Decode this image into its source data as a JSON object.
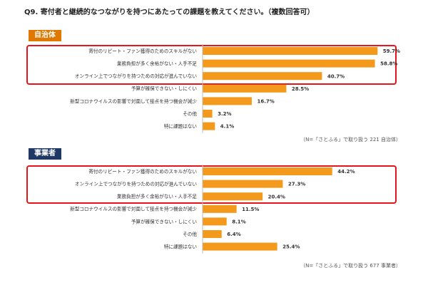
{
  "question": "Q9. 寄付者と継続的なつながりを持つにあたっての課題を教えてください。（複数回答可）",
  "colors": {
    "bar": "#f39a1c",
    "highlight": "#e8141c",
    "section_municipality": "#e07800",
    "section_business": "#1f3864"
  },
  "chart_data": [
    {
      "type": "bar",
      "orientation": "horizontal",
      "title": "自治体",
      "note": "（N=「さとふる」で取り扱う 221 自治体）",
      "categories": [
        "寄付のリピート・ファン獲得のためのスキルがない",
        "業務負担が多く余裕がない・人手不足",
        "オンライン上でつながりを持つための対応が進んでいない",
        "予算が確保できない・しにくい",
        "新型コロナウイルスの影響で対面して接点を持つ機会が減少",
        "その他",
        "特に課題はない"
      ],
      "values": [
        59.7,
        58.8,
        40.7,
        28.5,
        16.7,
        3.2,
        4.1
      ],
      "value_labels": [
        "59.7%",
        "58.8%",
        "40.7%",
        "28.5%",
        "16.7%",
        "3.2%",
        "4.1%"
      ],
      "xlim": [
        0,
        100
      ],
      "highlighted_top": 3
    },
    {
      "type": "bar",
      "orientation": "horizontal",
      "title": "事業者",
      "note": "（N=「さとふる」で取り扱う 677 事業者）",
      "categories": [
        "寄付のリピート・ファン獲得のためのスキルがない",
        "オンライン上でつながりを持つための対応が進んでいない",
        "業務負担が多く余裕がない・人手不足",
        "新型コロナウイルスの影響で対面して接点を持つ機会が減少",
        "予算が確保できない・しにくい",
        "その他",
        "特に課題はない"
      ],
      "values": [
        44.2,
        27.3,
        20.4,
        11.5,
        8.1,
        6.4,
        25.4
      ],
      "value_labels": [
        "44.2%",
        "27.3%",
        "20.4%",
        "11.5%",
        "8.1%",
        "6.4%",
        "25.4%"
      ],
      "xlim": [
        0,
        100
      ],
      "highlighted_top": 3
    }
  ]
}
